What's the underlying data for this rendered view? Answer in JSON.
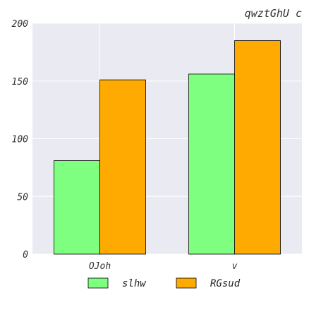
{
  "chart_data": {
    "type": "bar",
    "title": "qwztGhU c",
    "xlabel": "",
    "ylabel": "",
    "categories": [
      "OJoh",
      "v"
    ],
    "series": [
      {
        "name": "slhw",
        "values": [
          81,
          156
        ],
        "color": "#7fff7f"
      },
      {
        "name": "RGsud",
        "values": [
          151,
          185
        ],
        "color": "#ffaa00"
      }
    ],
    "ylim": [
      0,
      200
    ],
    "yticks": [
      0,
      50,
      100,
      150,
      200
    ],
    "grid": true,
    "legend": "bottom",
    "background_color": "#eaeaf2",
    "bar_edge_color": "#000000"
  }
}
